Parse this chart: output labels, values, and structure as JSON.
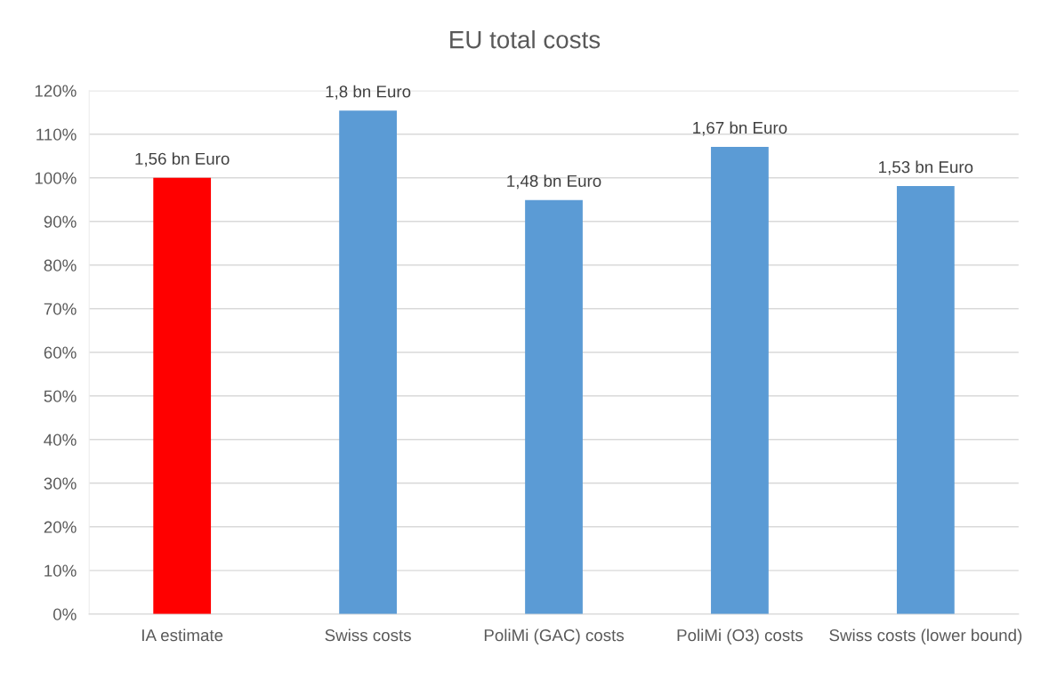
{
  "chart_data": {
    "type": "bar",
    "title": "EU total costs",
    "categories": [
      "IA estimate",
      "Swiss costs",
      "PoliMi (GAC) costs",
      "PoliMi (O3) costs",
      "Swiss costs (lower bound)"
    ],
    "values": [
      100,
      115.4,
      94.9,
      107.1,
      98.1
    ],
    "colors": [
      "#ff0000",
      "#5b9bd5",
      "#5b9bd5",
      "#5b9bd5",
      "#5b9bd5"
    ],
    "annotations": [
      {
        "text": "1,56 bn Euro",
        "x": "IA estimate",
        "y": 100
      },
      {
        "text": "1,8 bn Euro",
        "x": "Swiss costs",
        "y": 115.4
      },
      {
        "text": "1,48 bn Euro",
        "x": "PoliMi (GAC) costs",
        "y": 94.9
      },
      {
        "text": "1,67 bn Euro",
        "x": "PoliMi (O3) costs",
        "y": 107.1
      },
      {
        "text": "1,53 bn Euro",
        "x": "Swiss costs (lower bound)",
        "y": 98.1
      }
    ],
    "ylim": [
      0,
      120
    ],
    "yticks": [
      {
        "value": 0,
        "label": "0%"
      },
      {
        "value": 10,
        "label": "10%"
      },
      {
        "value": 20,
        "label": "20%"
      },
      {
        "value": 30,
        "label": "30%"
      },
      {
        "value": 40,
        "label": "40%"
      },
      {
        "value": 50,
        "label": "50%"
      },
      {
        "value": 60,
        "label": "60%"
      },
      {
        "value": 70,
        "label": "70%"
      },
      {
        "value": 80,
        "label": "80%"
      },
      {
        "value": 90,
        "label": "90%"
      },
      {
        "value": 100,
        "label": "100%"
      },
      {
        "value": 110,
        "label": "110%"
      },
      {
        "value": 120,
        "label": "120%"
      }
    ],
    "grid": "y",
    "legend": false
  }
}
